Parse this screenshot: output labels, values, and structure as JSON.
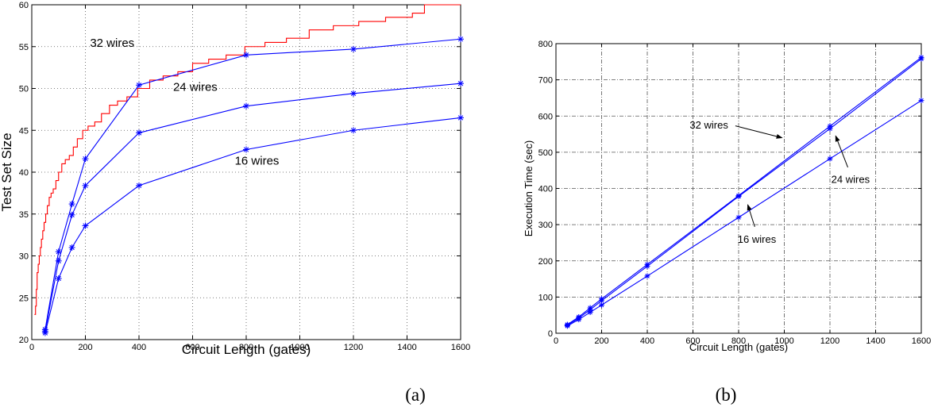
{
  "colors": {
    "series_blue": "#0000ff",
    "series_red": "#ff0000",
    "axis": "#000000",
    "grid": "#555555"
  },
  "chart_data": [
    {
      "id": "a",
      "type": "line",
      "caption": "(a)",
      "xlabel": "Circuit Length (gates)",
      "ylabel": "Test Set Size",
      "xlim": [
        0,
        1600
      ],
      "ylim": [
        20,
        60
      ],
      "xticks": [
        0,
        200,
        400,
        600,
        800,
        1000,
        1200,
        1400,
        1600
      ],
      "yticks": [
        20,
        25,
        30,
        35,
        40,
        45,
        50,
        55,
        60
      ],
      "grid": "dotted",
      "series": [
        {
          "name": "",
          "color": "#ff0000",
          "style": "step",
          "marker": "none",
          "x": [
            10,
            14,
            17,
            20,
            24,
            28,
            32,
            36,
            41,
            46,
            52,
            58,
            65,
            72,
            80,
            90,
            100,
            112,
            125,
            140,
            155,
            170,
            190,
            210,
            235,
            260,
            290,
            320,
            355,
            395,
            440,
            490,
            545,
            600,
            660,
            725,
            795,
            870,
            950,
            1035,
            1125,
            1220,
            1320,
            1420,
            1465,
            1600
          ],
          "y": [
            23,
            24,
            26,
            28,
            29,
            30,
            31,
            32,
            33,
            34,
            35,
            36,
            37,
            37.5,
            38,
            39,
            40,
            41,
            41.5,
            42,
            43,
            44,
            45,
            45.5,
            46,
            47,
            48,
            48.5,
            49,
            50,
            51,
            51.5,
            52,
            53,
            53.5,
            54,
            55,
            55.5,
            56,
            57,
            57.5,
            58,
            58.5,
            59,
            60,
            60
          ]
        },
        {
          "name": "",
          "color": "#0000ff",
          "style": "line",
          "marker": "*",
          "x": [
            50,
            100,
            150,
            200,
            400,
            800,
            1200,
            1600
          ],
          "y": [
            21.2,
            30.5,
            36.2,
            41.6,
            50.4,
            54.0,
            54.7,
            55.9
          ]
        },
        {
          "name": "",
          "color": "#0000ff",
          "style": "line",
          "marker": "*",
          "x": [
            50,
            100,
            150,
            200,
            400,
            800,
            1200,
            1600
          ],
          "y": [
            21.0,
            29.4,
            34.9,
            38.4,
            44.7,
            47.9,
            49.4,
            50.6
          ]
        },
        {
          "name": "",
          "color": "#0000ff",
          "style": "line",
          "marker": "*",
          "x": [
            50,
            100,
            150,
            200,
            400,
            800,
            1200,
            1600
          ],
          "y": [
            20.8,
            27.3,
            31.0,
            33.6,
            38.4,
            42.7,
            45.0,
            46.5
          ]
        }
      ],
      "annotations": [
        {
          "text": "32 wires",
          "x": 300,
          "y": 55
        },
        {
          "text": "24 wires",
          "x": 610,
          "y": 49.7
        },
        {
          "text": "16 wires",
          "x": 840,
          "y": 40.9
        }
      ]
    },
    {
      "id": "b",
      "type": "line",
      "caption": "(b)",
      "xlabel": "Circuit Length (gates)",
      "ylabel": "Execution Time (sec)",
      "xlim": [
        0,
        1600
      ],
      "ylim": [
        0,
        800
      ],
      "xticks": [
        0,
        200,
        400,
        600,
        800,
        1000,
        1200,
        1400,
        1600
      ],
      "yticks": [
        0,
        100,
        200,
        300,
        400,
        500,
        600,
        700,
        800
      ],
      "grid": "dashdot",
      "series": [
        {
          "name": "",
          "color": "#0000ff",
          "style": "line",
          "marker": "*",
          "x": [
            50,
            100,
            150,
            200,
            400,
            800,
            1200,
            1600
          ],
          "y": [
            24,
            45,
            70,
            95,
            190,
            380,
            572,
            762
          ]
        },
        {
          "name": "",
          "color": "#0000ff",
          "style": "line",
          "marker": "*",
          "x": [
            50,
            100,
            150,
            200,
            400,
            800,
            1200,
            1600
          ],
          "y": [
            22,
            42,
            65,
            90,
            185,
            378,
            565,
            758
          ]
        },
        {
          "name": "",
          "color": "#0000ff",
          "style": "line",
          "marker": "*",
          "x": [
            50,
            100,
            150,
            200,
            400,
            800,
            1200,
            1600
          ],
          "y": [
            20,
            38,
            58,
            78,
            158,
            320,
            482,
            643
          ]
        }
      ],
      "annotations": [
        {
          "text": "32 wires",
          "x": 670,
          "y": 565,
          "arrow_to": [
            990,
            540
          ]
        },
        {
          "text": "24 wires",
          "x": 1290,
          "y": 415,
          "arrow_to": [
            1225,
            545
          ]
        },
        {
          "text": "16 wires",
          "x": 880,
          "y": 250,
          "arrow_to": [
            840,
            355
          ]
        }
      ]
    }
  ]
}
